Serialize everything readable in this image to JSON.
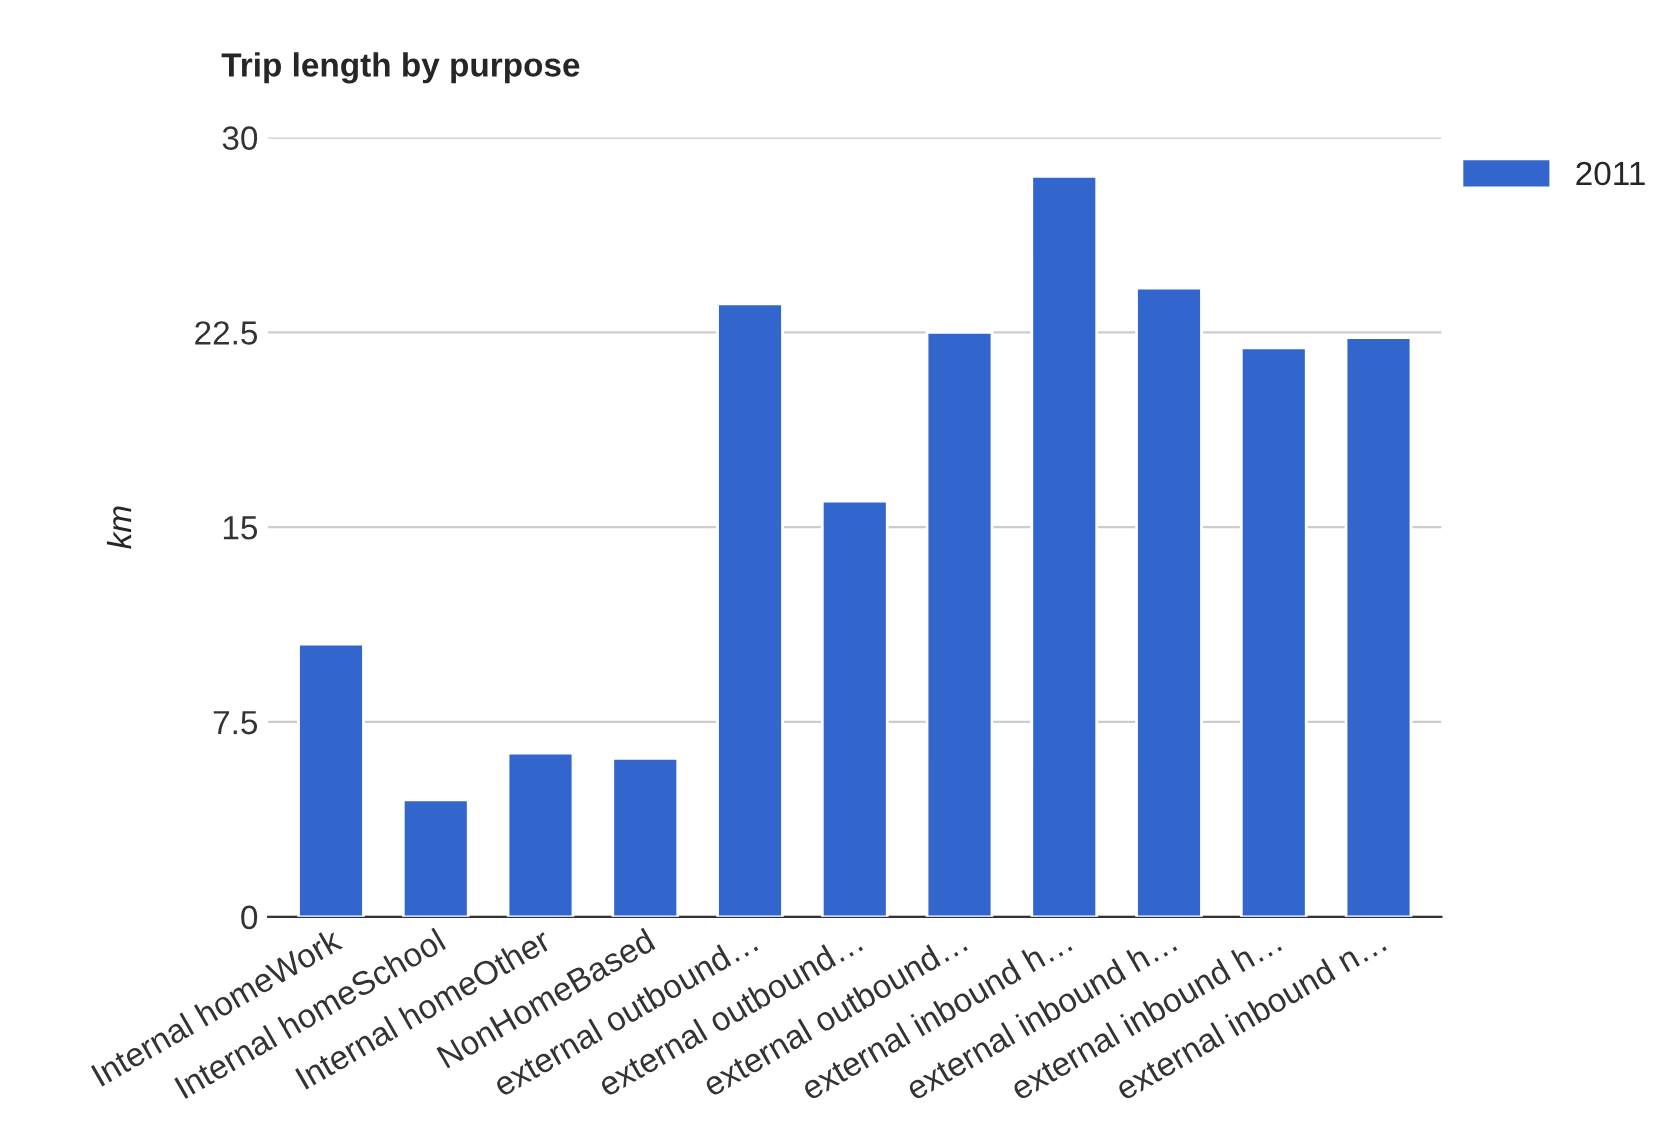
{
  "chart_data": {
    "type": "bar",
    "title": "Trip length by purpose",
    "ylabel": "km",
    "categories": [
      "Internal homeWork",
      "Internal homeSchool",
      "Internal homeOther",
      "NonHomeBased",
      "external outbound…",
      "external outbound…",
      "external outbound…",
      "external inbound h…",
      "external inbound h…",
      "external inbound h…",
      "external inbound n…"
    ],
    "series": [
      {
        "name": "2011",
        "color": "#3366cc",
        "values": [
          10.5,
          4.5,
          6.3,
          6.1,
          23.6,
          16.0,
          22.5,
          28.5,
          24.2,
          21.9,
          22.3
        ]
      }
    ],
    "ylim": [
      0,
      30
    ],
    "yticks": [
      0,
      7.5,
      15,
      22.5,
      30
    ],
    "grid": "y",
    "legend": "top right"
  }
}
